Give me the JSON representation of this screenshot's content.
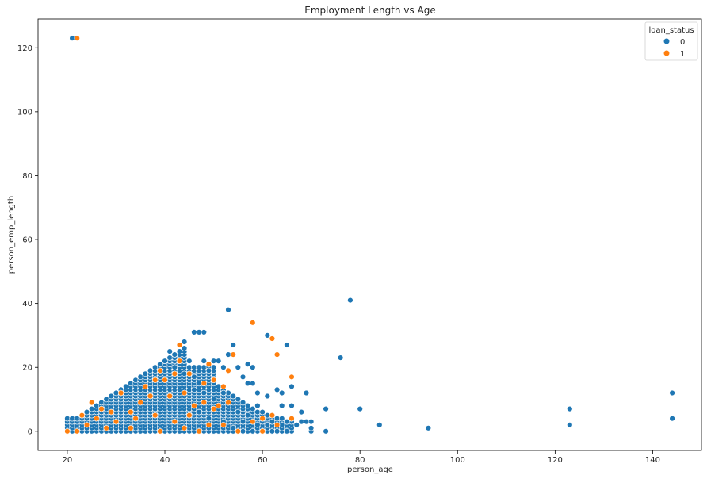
{
  "chart_data": {
    "type": "scatter",
    "title": "Employment Length vs Age",
    "xlabel": "person_age",
    "ylabel": "person_emp_length",
    "xlim": [
      14,
      150
    ],
    "ylim": [
      -6,
      129
    ],
    "xticks": [
      20,
      40,
      60,
      80,
      100,
      120,
      140
    ],
    "yticks": [
      0,
      20,
      40,
      60,
      80,
      100,
      120
    ],
    "grid": false,
    "legend": {
      "title": "loan_status",
      "position": "top-right"
    },
    "series": [
      {
        "name": "0",
        "color": "#1f77b4",
        "points": [
          [
            21,
            123
          ],
          [
            78,
            41
          ],
          [
            53,
            38
          ],
          [
            47,
            31
          ],
          [
            48,
            31
          ],
          [
            46,
            31
          ],
          [
            61,
            30
          ],
          [
            54,
            27
          ],
          [
            65,
            27
          ],
          [
            44,
            28
          ],
          [
            43,
            27
          ],
          [
            43,
            25
          ],
          [
            41,
            25
          ],
          [
            42,
            24
          ],
          [
            53,
            24
          ],
          [
            76,
            23
          ],
          [
            50,
            22
          ],
          [
            51,
            22
          ],
          [
            57,
            21
          ],
          [
            58,
            20
          ],
          [
            52,
            20
          ],
          [
            55,
            20
          ],
          [
            56,
            17
          ],
          [
            57,
            15
          ],
          [
            58,
            15
          ],
          [
            59,
            12
          ],
          [
            61,
            11
          ],
          [
            63,
            13
          ],
          [
            64,
            12
          ],
          [
            66,
            14
          ],
          [
            69,
            12
          ],
          [
            59,
            8
          ],
          [
            64,
            8
          ],
          [
            66,
            8
          ],
          [
            68,
            6
          ],
          [
            73,
            7
          ],
          [
            80,
            7
          ],
          [
            84,
            2
          ],
          [
            94,
            1
          ],
          [
            123,
            7
          ],
          [
            123,
            2
          ],
          [
            144,
            12
          ],
          [
            144,
            4
          ],
          [
            73,
            0
          ],
          [
            70,
            0
          ],
          [
            70,
            3
          ],
          [
            62,
            0
          ],
          [
            63,
            0
          ],
          [
            65,
            0
          ],
          [
            67,
            2
          ],
          [
            68,
            3
          ],
          [
            60,
            4
          ],
          [
            62,
            3
          ],
          [
            65,
            3
          ],
          [
            66,
            4
          ],
          [
            64,
            2
          ],
          [
            61,
            2
          ],
          [
            69,
            3
          ],
          [
            70,
            1
          ],
          [
            57,
            5
          ],
          [
            56,
            3
          ],
          [
            55,
            6
          ],
          [
            53,
            9
          ],
          [
            52,
            12
          ],
          [
            51,
            14
          ],
          [
            54,
            11
          ],
          [
            55,
            10
          ],
          [
            49,
            19
          ],
          [
            48,
            22
          ],
          [
            45,
            22
          ],
          [
            44,
            18
          ],
          [
            42,
            20
          ],
          [
            40,
            22
          ],
          [
            39,
            21
          ],
          [
            46,
            17
          ],
          [
            47,
            15
          ],
          [
            48,
            12
          ],
          [
            50,
            10
          ],
          [
            46,
            13
          ],
          [
            44,
            11
          ],
          [
            60,
            0
          ],
          [
            59,
            2
          ],
          [
            58,
            0
          ],
          [
            56,
            0
          ],
          [
            54,
            1
          ],
          [
            52,
            3
          ],
          [
            49,
            4
          ],
          [
            47,
            6
          ],
          [
            45,
            5
          ]
        ]
      },
      {
        "name": "1",
        "color": "#ff7f0e",
        "points": [
          [
            22,
            123
          ],
          [
            58,
            34
          ],
          [
            62,
            29
          ],
          [
            63,
            24
          ],
          [
            54,
            24
          ],
          [
            53,
            19
          ],
          [
            66,
            17
          ],
          [
            49,
            21
          ],
          [
            43,
            22
          ],
          [
            43,
            27
          ],
          [
            52,
            14
          ],
          [
            48,
            15
          ],
          [
            45,
            18
          ],
          [
            39,
            19
          ],
          [
            42,
            18
          ],
          [
            50,
            16
          ],
          [
            51,
            8
          ],
          [
            53,
            9
          ],
          [
            60,
            4
          ],
          [
            62,
            5
          ],
          [
            63,
            2
          ],
          [
            66,
            4
          ],
          [
            60,
            0
          ],
          [
            58,
            3
          ],
          [
            55,
            0
          ],
          [
            47,
            0
          ],
          [
            45,
            5
          ],
          [
            48,
            9
          ],
          [
            44,
            12
          ],
          [
            40,
            16
          ],
          [
            37,
            11
          ],
          [
            35,
            9
          ],
          [
            33,
            6
          ],
          [
            30,
            3
          ],
          [
            28,
            1
          ],
          [
            26,
            4
          ],
          [
            24,
            2
          ],
          [
            22,
            0
          ],
          [
            20,
            0
          ],
          [
            25,
            9
          ],
          [
            27,
            7
          ],
          [
            31,
            12
          ],
          [
            36,
            14
          ],
          [
            38,
            16
          ],
          [
            41,
            11
          ],
          [
            46,
            8
          ],
          [
            50,
            7
          ],
          [
            52,
            2
          ],
          [
            42,
            3
          ],
          [
            38,
            5
          ],
          [
            33,
            1
          ],
          [
            29,
            6
          ],
          [
            23,
            5
          ],
          [
            34,
            4
          ],
          [
            39,
            0
          ],
          [
            44,
            1
          ],
          [
            49,
            2
          ]
        ]
      }
    ],
    "cluster_region": {
      "note": "dense region of series 0 points forms a triangle: for each age from 20 to 66, emp_length ranges from 0 up to roughly age-18 (capped)",
      "age_min": 20,
      "age_max": 66
    }
  }
}
